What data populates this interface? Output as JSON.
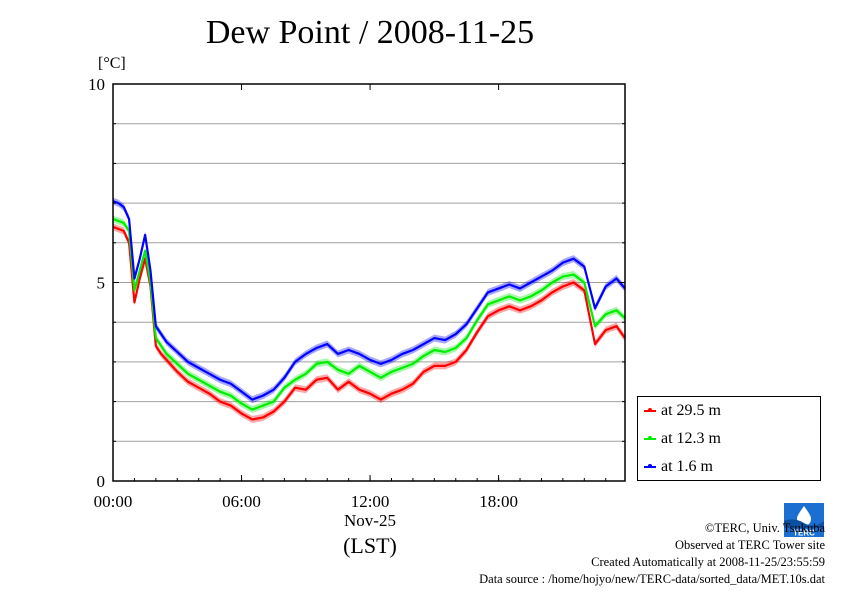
{
  "title": "Dew Point / 2008-11-25",
  "y_unit": "[°C]",
  "x_date": "Nov-25",
  "x_zone": "(LST)",
  "credits": {
    "copyright": "©TERC, Univ. Tsukuba",
    "observed": "Observed at TERC Tower site",
    "created": "Created Automatically at 2008-11-25/23:55:59",
    "source": "Data source : /home/hojyo/new/TERC-data/sorted_data/MET.10s.dat"
  },
  "logo_text": "TERC",
  "colors": {
    "s1": "#ff0000",
    "s2": "#00ee00",
    "s3": "#0000ff",
    "grid": "#a0a0a0"
  },
  "chart_data": {
    "type": "line",
    "title": "Dew Point / 2008-11-25",
    "xlabel": "Nov-25 (LST)",
    "ylabel": "[°C]",
    "xlim": [
      0,
      23.9
    ],
    "ylim": [
      0,
      10
    ],
    "x_ticks": [
      0,
      6,
      12,
      18
    ],
    "x_tick_labels": [
      "00:00",
      "06:00",
      "12:00",
      "18:00"
    ],
    "y_ticks": [
      0,
      5,
      10
    ],
    "y_tick_labels": [
      "0",
      "5",
      "10"
    ],
    "grid": "horizontal",
    "legend_position": "bottom-right, outside plot",
    "x": [
      0,
      0.25,
      0.5,
      0.75,
      1.0,
      1.25,
      1.5,
      1.75,
      2.0,
      2.25,
      2.5,
      3,
      3.5,
      4,
      4.5,
      5,
      5.5,
      6,
      6.5,
      7,
      7.5,
      8,
      8.5,
      9,
      9.5,
      10,
      10.5,
      11,
      11.5,
      12,
      12.5,
      13,
      13.5,
      14,
      14.5,
      15,
      15.5,
      16,
      16.5,
      17,
      17.5,
      18,
      18.5,
      19,
      19.5,
      20,
      20.5,
      21,
      21.5,
      22,
      22.5,
      23,
      23.5,
      23.9
    ],
    "series": [
      {
        "name": "at 29.5 m",
        "values": [
          6.4,
          6.35,
          6.3,
          6.0,
          4.5,
          5.1,
          5.6,
          4.9,
          3.4,
          3.2,
          3.05,
          2.75,
          2.5,
          2.35,
          2.2,
          2.0,
          1.9,
          1.7,
          1.55,
          1.6,
          1.75,
          2.0,
          2.35,
          2.3,
          2.55,
          2.6,
          2.3,
          2.5,
          2.3,
          2.2,
          2.05,
          2.2,
          2.3,
          2.45,
          2.75,
          2.9,
          2.9,
          3.0,
          3.3,
          3.75,
          4.15,
          4.3,
          4.4,
          4.3,
          4.4,
          4.55,
          4.75,
          4.9,
          5.0,
          4.8,
          3.45,
          3.8,
          3.9,
          3.6
        ]
      },
      {
        "name": "at 12.3 m",
        "values": [
          6.6,
          6.55,
          6.5,
          6.3,
          4.8,
          5.3,
          5.8,
          5.0,
          3.6,
          3.4,
          3.2,
          2.95,
          2.7,
          2.55,
          2.4,
          2.25,
          2.15,
          1.95,
          1.8,
          1.9,
          2.0,
          2.35,
          2.55,
          2.7,
          2.95,
          3.0,
          2.8,
          2.7,
          2.9,
          2.75,
          2.6,
          2.75,
          2.85,
          2.95,
          3.15,
          3.3,
          3.25,
          3.35,
          3.6,
          4.05,
          4.45,
          4.55,
          4.65,
          4.55,
          4.65,
          4.8,
          5.0,
          5.15,
          5.2,
          5.0,
          3.9,
          4.2,
          4.3,
          4.1
        ]
      },
      {
        "name": "at 1.6 m",
        "values": [
          7.05,
          7.0,
          6.9,
          6.6,
          5.1,
          5.6,
          6.2,
          5.3,
          3.9,
          3.7,
          3.5,
          3.25,
          3.0,
          2.85,
          2.7,
          2.55,
          2.45,
          2.25,
          2.05,
          2.15,
          2.3,
          2.6,
          3.0,
          3.2,
          3.35,
          3.45,
          3.2,
          3.3,
          3.2,
          3.05,
          2.95,
          3.05,
          3.2,
          3.3,
          3.45,
          3.6,
          3.55,
          3.7,
          3.95,
          4.35,
          4.75,
          4.85,
          4.95,
          4.85,
          5.0,
          5.15,
          5.3,
          5.5,
          5.6,
          5.4,
          4.35,
          4.9,
          5.1,
          4.85
        ]
      }
    ]
  }
}
